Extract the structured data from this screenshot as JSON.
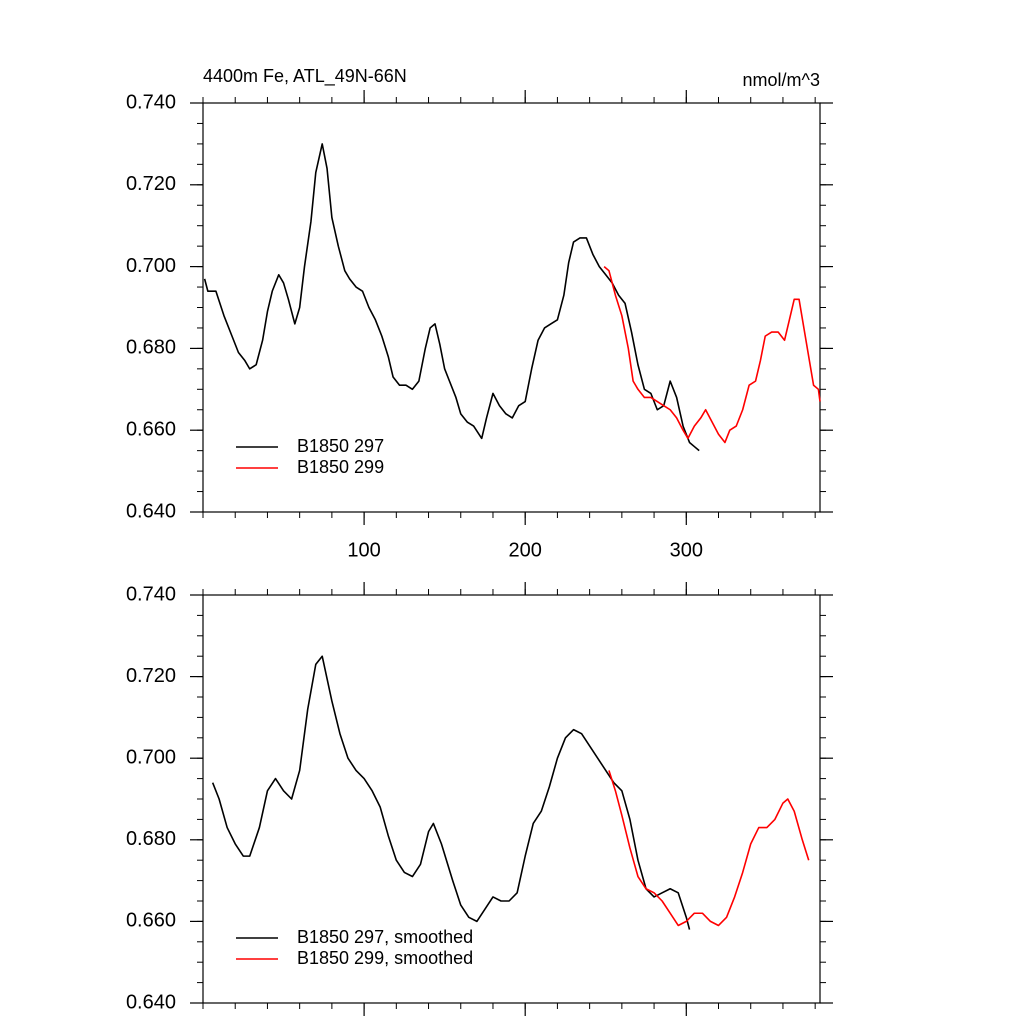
{
  "chart_data": [
    {
      "type": "line",
      "title": "4400m Fe, ATL_49N-66N",
      "units": "nmol/m^3",
      "xlim": [
        0,
        383
      ],
      "xticks": [
        100,
        200,
        300
      ],
      "xtick_labels": true,
      "ylim": [
        0.64,
        0.74
      ],
      "yticks": [
        {
          "value": 0.64,
          "label": "0.640"
        },
        {
          "value": 0.66,
          "label": "0.660"
        },
        {
          "value": 0.68,
          "label": "0.680"
        },
        {
          "value": 0.7,
          "label": "0.700"
        },
        {
          "value": 0.72,
          "label": "0.720"
        },
        {
          "value": 0.74,
          "label": "0.740"
        }
      ],
      "legend": "lower left",
      "series": [
        {
          "name": "B1850 297",
          "color": "#000000",
          "x": [
            1,
            3,
            8,
            13,
            18,
            22,
            26,
            29,
            33,
            37,
            40,
            43,
            47,
            50,
            53,
            57,
            60,
            63,
            67,
            70,
            74,
            77,
            80,
            84,
            88,
            91,
            95,
            99,
            103,
            107,
            111,
            115,
            118,
            122,
            126,
            130,
            134,
            138,
            141,
            144,
            147,
            150,
            153,
            157,
            160,
            164,
            168,
            173,
            176,
            180,
            184,
            188,
            192,
            196,
            200,
            204,
            208,
            212,
            216,
            220,
            224,
            227,
            230,
            234,
            238,
            242,
            246,
            250,
            254,
            258,
            262,
            266,
            270,
            274,
            278,
            282,
            286,
            290,
            294,
            298,
            302,
            305,
            308
          ],
          "values": [
            0.697,
            0.694,
            0.694,
            0.688,
            0.683,
            0.679,
            0.677,
            0.675,
            0.676,
            0.682,
            0.689,
            0.694,
            0.698,
            0.696,
            0.692,
            0.686,
            0.69,
            0.7,
            0.711,
            0.723,
            0.73,
            0.724,
            0.712,
            0.705,
            0.699,
            0.697,
            0.695,
            0.694,
            0.69,
            0.687,
            0.683,
            0.678,
            0.673,
            0.671,
            0.671,
            0.67,
            0.672,
            0.68,
            0.685,
            0.686,
            0.681,
            0.675,
            0.672,
            0.668,
            0.664,
            0.662,
            0.661,
            0.658,
            0.663,
            0.669,
            0.666,
            0.664,
            0.663,
            0.666,
            0.667,
            0.675,
            0.682,
            0.685,
            0.686,
            0.687,
            0.693,
            0.701,
            0.706,
            0.707,
            0.707,
            0.703,
            0.7,
            0.698,
            0.696,
            0.693,
            0.691,
            0.684,
            0.676,
            0.67,
            0.669,
            0.665,
            0.666,
            0.672,
            0.668,
            0.661,
            0.657,
            0.656,
            0.655
          ]
        },
        {
          "name": "B1850 299",
          "color": "#ff0000",
          "x": [
            249,
            252,
            256,
            260,
            264,
            267,
            270,
            274,
            278,
            282,
            286,
            290,
            294,
            298,
            301,
            305,
            309,
            312,
            316,
            320,
            324,
            327,
            331,
            335,
            339,
            343,
            346,
            349,
            353,
            357,
            361,
            364,
            367,
            370,
            373,
            376,
            379,
            382,
            383
          ],
          "values": [
            0.7,
            0.699,
            0.693,
            0.688,
            0.68,
            0.672,
            0.67,
            0.668,
            0.668,
            0.667,
            0.666,
            0.665,
            0.663,
            0.66,
            0.658,
            0.661,
            0.663,
            0.665,
            0.662,
            0.659,
            0.657,
            0.66,
            0.661,
            0.665,
            0.671,
            0.672,
            0.677,
            0.683,
            0.684,
            0.684,
            0.682,
            0.687,
            0.692,
            0.692,
            0.685,
            0.678,
            0.671,
            0.67,
            0.667
          ]
        }
      ]
    },
    {
      "type": "line",
      "xlim": [
        0,
        383
      ],
      "xticks": [
        100,
        200,
        300
      ],
      "xtick_labels": false,
      "ylim": [
        0.64,
        0.74
      ],
      "yticks": [
        {
          "value": 0.64,
          "label": "0.640"
        },
        {
          "value": 0.66,
          "label": "0.660"
        },
        {
          "value": 0.68,
          "label": "0.680"
        },
        {
          "value": 0.7,
          "label": "0.700"
        },
        {
          "value": 0.72,
          "label": "0.720"
        },
        {
          "value": 0.74,
          "label": "0.740"
        }
      ],
      "legend": "lower left",
      "series": [
        {
          "name": "B1850 297, smoothed",
          "color": "#000000",
          "x": [
            6,
            10,
            15,
            20,
            25,
            29,
            35,
            40,
            45,
            50,
            55,
            60,
            65,
            70,
            74,
            80,
            85,
            90,
            95,
            100,
            105,
            110,
            115,
            120,
            125,
            130,
            135,
            140,
            143,
            148,
            155,
            160,
            165,
            170,
            175,
            180,
            185,
            190,
            195,
            200,
            205,
            210,
            215,
            220,
            225,
            230,
            235,
            240,
            245,
            250,
            255,
            260,
            265,
            270,
            275,
            280,
            285,
            290,
            295,
            300,
            302
          ],
          "values": [
            0.694,
            0.69,
            0.683,
            0.679,
            0.676,
            0.676,
            0.683,
            0.692,
            0.695,
            0.692,
            0.69,
            0.697,
            0.712,
            0.723,
            0.725,
            0.714,
            0.706,
            0.7,
            0.697,
            0.695,
            0.692,
            0.688,
            0.681,
            0.675,
            0.672,
            0.671,
            0.674,
            0.682,
            0.684,
            0.679,
            0.67,
            0.664,
            0.661,
            0.66,
            0.663,
            0.666,
            0.665,
            0.665,
            0.667,
            0.676,
            0.684,
            0.687,
            0.693,
            0.7,
            0.705,
            0.707,
            0.706,
            0.703,
            0.7,
            0.697,
            0.694,
            0.692,
            0.685,
            0.675,
            0.668,
            0.666,
            0.667,
            0.668,
            0.667,
            0.661,
            0.658
          ]
        },
        {
          "name": "B1850 299, smoothed",
          "color": "#ff0000",
          "x": [
            252,
            256,
            260,
            265,
            270,
            275,
            280,
            285,
            290,
            295,
            300,
            305,
            310,
            315,
            320,
            325,
            330,
            335,
            340,
            345,
            350,
            355,
            360,
            363,
            367,
            372,
            376
          ],
          "values": [
            0.697,
            0.692,
            0.686,
            0.678,
            0.671,
            0.668,
            0.667,
            0.665,
            0.662,
            0.659,
            0.66,
            0.662,
            0.662,
            0.66,
            0.659,
            0.661,
            0.666,
            0.672,
            0.679,
            0.683,
            0.683,
            0.685,
            0.689,
            0.69,
            0.687,
            0.68,
            0.675
          ]
        }
      ]
    }
  ]
}
